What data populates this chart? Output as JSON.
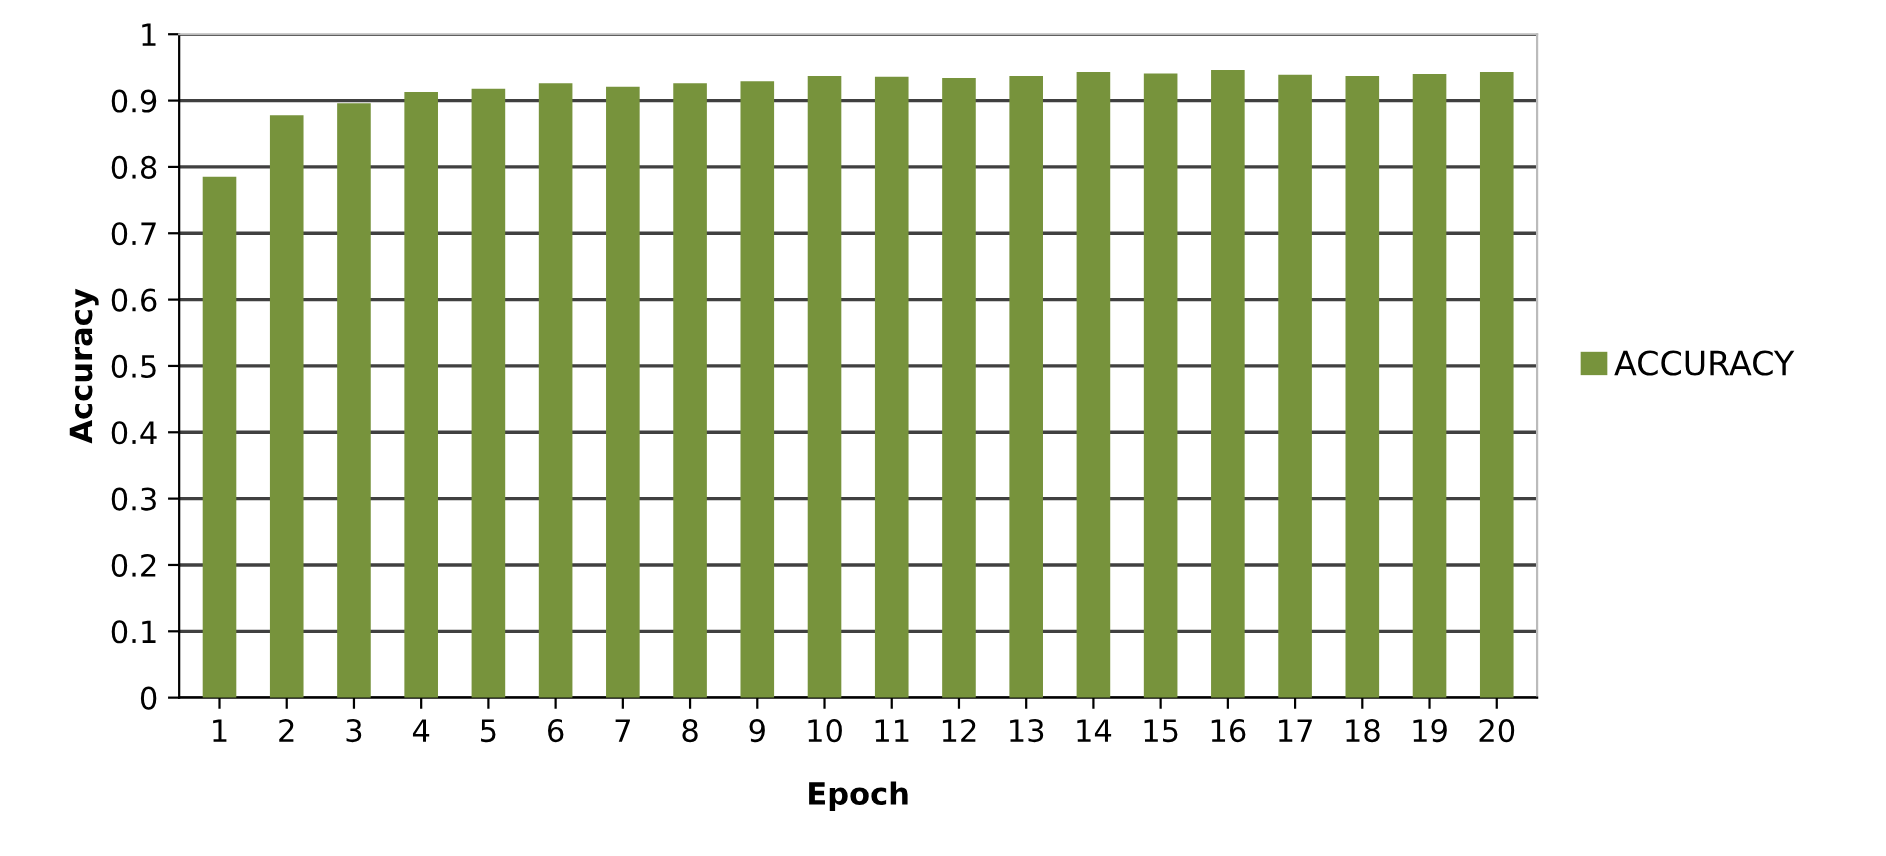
{
  "chart_data": {
    "type": "bar",
    "xlabel": "Epoch",
    "ylabel": "Accuracy",
    "categories": [
      "1",
      "2",
      "3",
      "4",
      "5",
      "6",
      "7",
      "8",
      "9",
      "10",
      "11",
      "12",
      "13",
      "14",
      "15",
      "16",
      "17",
      "18",
      "19",
      "20"
    ],
    "series": [
      {
        "name": "ACCURACY",
        "color": "#77933c",
        "values": [
          0.785,
          0.878,
          0.896,
          0.913,
          0.918,
          0.926,
          0.921,
          0.926,
          0.929,
          0.937,
          0.936,
          0.934,
          0.937,
          0.943,
          0.941,
          0.946,
          0.939,
          0.937,
          0.94,
          0.943
        ]
      }
    ],
    "ylim": [
      0,
      1
    ],
    "yticks": [
      {
        "value": 0,
        "label": "0"
      },
      0.1,
      0.2,
      0.3,
      0.4,
      0.5,
      0.6,
      0.7,
      0.8,
      0.9,
      {
        "value": 1,
        "label": "1"
      }
    ],
    "grid": "y",
    "legend": "right"
  }
}
